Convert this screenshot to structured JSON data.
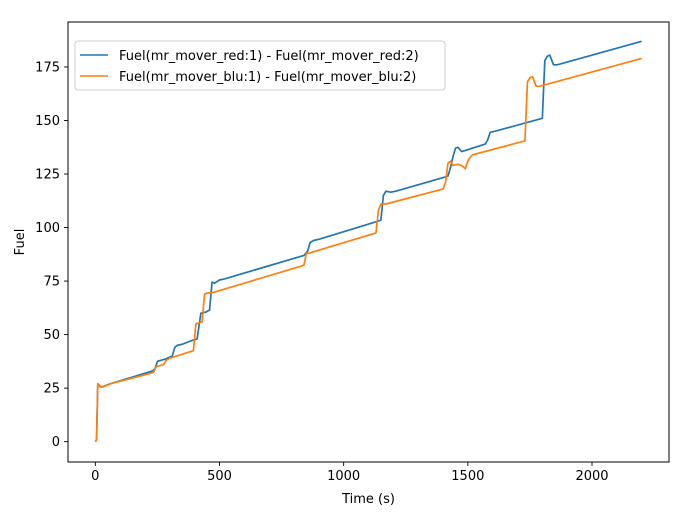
{
  "chart_data": {
    "type": "line",
    "title": "",
    "xlabel": "Time (s)",
    "ylabel": "Fuel",
    "xlim": [
      -110,
      2310
    ],
    "ylim": [
      -9.5,
      196
    ],
    "xticks": [
      0,
      500,
      1000,
      1500,
      2000
    ],
    "yticks": [
      0,
      25,
      50,
      75,
      100,
      125,
      150,
      175
    ],
    "grid": false,
    "legend_position": "top-left",
    "series": [
      {
        "name": "Fuel(mr_mover_red:1) - Fuel(mr_mover_red:2)",
        "color": "#1f77b4",
        "points": [
          [
            0,
            0
          ],
          [
            5,
            1
          ],
          [
            10,
            27
          ],
          [
            18,
            26
          ],
          [
            25,
            25.5
          ],
          [
            60,
            27
          ],
          [
            230,
            33
          ],
          [
            240,
            34
          ],
          [
            250,
            37.5
          ],
          [
            280,
            38.5
          ],
          [
            310,
            40
          ],
          [
            320,
            44
          ],
          [
            330,
            45
          ],
          [
            350,
            45.5
          ],
          [
            395,
            47.5
          ],
          [
            410,
            48
          ],
          [
            425,
            60
          ],
          [
            445,
            60.5
          ],
          [
            460,
            61.5
          ],
          [
            470,
            74.5
          ],
          [
            480,
            74
          ],
          [
            500,
            75.5
          ],
          [
            520,
            76
          ],
          [
            840,
            87
          ],
          [
            855,
            89
          ],
          [
            865,
            93
          ],
          [
            880,
            94
          ],
          [
            900,
            94.5
          ],
          [
            1140,
            103
          ],
          [
            1150,
            103.5
          ],
          [
            1160,
            115
          ],
          [
            1170,
            117
          ],
          [
            1190,
            116.5
          ],
          [
            1210,
            117
          ],
          [
            1420,
            124
          ],
          [
            1430,
            128
          ],
          [
            1440,
            133
          ],
          [
            1450,
            137
          ],
          [
            1460,
            137.5
          ],
          [
            1475,
            135.5
          ],
          [
            1490,
            136
          ],
          [
            1570,
            139
          ],
          [
            1580,
            141
          ],
          [
            1590,
            144.5
          ],
          [
            1610,
            145
          ],
          [
            1800,
            151
          ],
          [
            1810,
            178
          ],
          [
            1820,
            180
          ],
          [
            1830,
            180.5
          ],
          [
            1845,
            176
          ],
          [
            1860,
            176
          ],
          [
            2200,
            187
          ]
        ]
      },
      {
        "name": "Fuel(mr_mover_blu:1) - Fuel(mr_mover_blu:2)",
        "color": "#ff7f0e",
        "points": [
          [
            0,
            0
          ],
          [
            5,
            1
          ],
          [
            10,
            27
          ],
          [
            20,
            25.5
          ],
          [
            30,
            25.5
          ],
          [
            60,
            27
          ],
          [
            225,
            32
          ],
          [
            235,
            32.5
          ],
          [
            245,
            35
          ],
          [
            275,
            36
          ],
          [
            285,
            38
          ],
          [
            300,
            39
          ],
          [
            395,
            42.5
          ],
          [
            405,
            55
          ],
          [
            430,
            56
          ],
          [
            440,
            69
          ],
          [
            455,
            69.5
          ],
          [
            470,
            69.5
          ],
          [
            830,
            82
          ],
          [
            840,
            82.5
          ],
          [
            850,
            88
          ],
          [
            860,
            88
          ],
          [
            1130,
            97.5
          ],
          [
            1140,
            108
          ],
          [
            1150,
            111
          ],
          [
            1170,
            111
          ],
          [
            1400,
            118
          ],
          [
            1410,
            121
          ],
          [
            1420,
            130
          ],
          [
            1430,
            131
          ],
          [
            1440,
            129
          ],
          [
            1460,
            129.5
          ],
          [
            1475,
            129
          ],
          [
            1490,
            127.5
          ],
          [
            1500,
            131
          ],
          [
            1510,
            133
          ],
          [
            1520,
            134
          ],
          [
            1730,
            140.5
          ],
          [
            1740,
            168
          ],
          [
            1750,
            170
          ],
          [
            1760,
            170.5
          ],
          [
            1775,
            166
          ],
          [
            1790,
            166
          ],
          [
            2200,
            179
          ]
        ]
      }
    ]
  }
}
